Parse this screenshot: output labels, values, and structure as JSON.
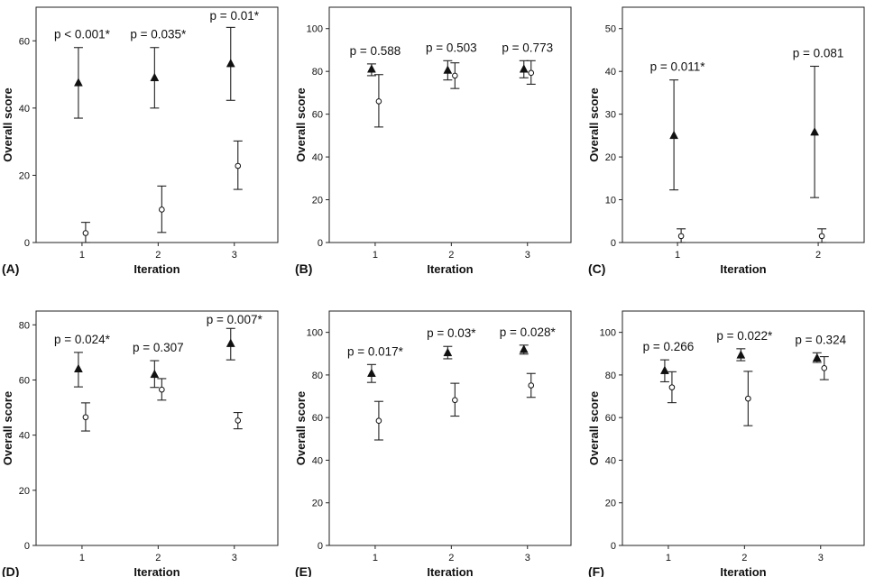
{
  "chart_data": [
    {
      "type": "scatter",
      "panel": "(A)",
      "xlabel": "Iteration",
      "ylabel": "Overall score",
      "categories": [
        "1",
        "2",
        "3"
      ],
      "ylim": [
        0,
        70
      ],
      "yticks": [
        0,
        20,
        40,
        60
      ],
      "series": [
        {
          "marker": "triangle",
          "mean": [
            47.5,
            49,
            53.2
          ],
          "lower": [
            37,
            40,
            42.3
          ],
          "upper": [
            58,
            58,
            64
          ]
        },
        {
          "marker": "circle",
          "mean": [
            2.8,
            9.8,
            22.8
          ],
          "lower": [
            0,
            3,
            15.8
          ],
          "upper": [
            6,
            16.8,
            30.2
          ]
        }
      ],
      "annotations": [
        "p < 0.001*",
        "p = 0.035*",
        "p = 0.01*"
      ]
    },
    {
      "type": "scatter",
      "panel": "(B)",
      "xlabel": "Iteration",
      "ylabel": "Overall score",
      "categories": [
        "1",
        "2",
        "3"
      ],
      "ylim": [
        0,
        110
      ],
      "yticks": [
        0,
        20,
        40,
        60,
        80,
        100
      ],
      "series": [
        {
          "marker": "triangle",
          "mean": [
            81,
            80.5,
            81
          ],
          "lower": [
            78,
            76,
            77
          ],
          "upper": [
            83.5,
            85,
            85
          ]
        },
        {
          "marker": "circle",
          "mean": [
            66,
            78,
            79.3
          ],
          "lower": [
            54,
            72,
            74
          ],
          "upper": [
            78.5,
            84,
            85
          ]
        }
      ],
      "annotations": [
        "p = 0.588",
        "p = 0.503",
        "p = 0.773"
      ]
    },
    {
      "type": "scatter",
      "panel": "(C)",
      "xlabel": "Iteration",
      "ylabel": "Overall score",
      "categories": [
        "1",
        "2"
      ],
      "ylim": [
        0,
        55
      ],
      "yticks": [
        0,
        10,
        20,
        30,
        40,
        50
      ],
      "series": [
        {
          "marker": "triangle",
          "mean": [
            25,
            25.8
          ],
          "lower": [
            12.3,
            10.5
          ],
          "upper": [
            38,
            41.2
          ]
        },
        {
          "marker": "circle",
          "mean": [
            1.5,
            1.5
          ],
          "lower": [
            0,
            0
          ],
          "upper": [
            3.2,
            3.2
          ]
        }
      ],
      "annotations": [
        "p = 0.011*",
        "p = 0.081"
      ]
    },
    {
      "type": "scatter",
      "panel": "(D)",
      "xlabel": "Iteration",
      "ylabel": "Overall score",
      "categories": [
        "1",
        "2",
        "3"
      ],
      "ylim": [
        0,
        85
      ],
      "yticks": [
        0,
        20,
        40,
        60,
        80
      ],
      "series": [
        {
          "marker": "triangle",
          "mean": [
            64,
            62,
            73.2
          ],
          "lower": [
            57.5,
            57.3,
            67.3
          ],
          "upper": [
            70,
            67,
            78.7
          ]
        },
        {
          "marker": "circle",
          "mean": [
            46.5,
            56.5,
            45.3
          ],
          "lower": [
            41.5,
            52.7,
            42.3
          ],
          "upper": [
            51.7,
            60.5,
            48.2
          ]
        }
      ],
      "annotations": [
        "p = 0.024*",
        "p = 0.307",
        "p = 0.007*"
      ]
    },
    {
      "type": "scatter",
      "panel": "(E)",
      "xlabel": "Iteration",
      "ylabel": "Overall score",
      "categories": [
        "1",
        "2",
        "3"
      ],
      "ylim": [
        0,
        110
      ],
      "yticks": [
        0,
        20,
        40,
        60,
        80,
        100
      ],
      "series": [
        {
          "marker": "triangle",
          "mean": [
            80.7,
            90.4,
            91.9
          ],
          "lower": [
            76.5,
            87.6,
            89.8
          ],
          "upper": [
            84.9,
            93.4,
            94
          ]
        },
        {
          "marker": "circle",
          "mean": [
            58.5,
            68.2,
            75.1
          ],
          "lower": [
            49.5,
            60.7,
            69.5
          ],
          "upper": [
            67.6,
            76.1,
            80.7
          ]
        }
      ],
      "annotations": [
        "p = 0.017*",
        "p = 0.03*",
        "p = 0.028*"
      ]
    },
    {
      "type": "scatter",
      "panel": "(F)",
      "xlabel": "Iteration",
      "ylabel": "Overall score",
      "categories": [
        "1",
        "2",
        "3"
      ],
      "ylim": [
        0,
        110
      ],
      "yticks": [
        0,
        20,
        40,
        60,
        80,
        100
      ],
      "series": [
        {
          "marker": "triangle",
          "mean": [
            82,
            89.3,
            87.9
          ],
          "lower": [
            76.8,
            86.7,
            85.9
          ],
          "upper": [
            87.1,
            92.3,
            90.4
          ]
        },
        {
          "marker": "circle",
          "mean": [
            74.2,
            68.9,
            83.2
          ],
          "lower": [
            67,
            56.2,
            77.8
          ],
          "upper": [
            81.5,
            81.7,
            88.6
          ]
        }
      ],
      "annotations": [
        "p = 0.266",
        "p = 0.022*",
        "p = 0.324"
      ]
    }
  ]
}
